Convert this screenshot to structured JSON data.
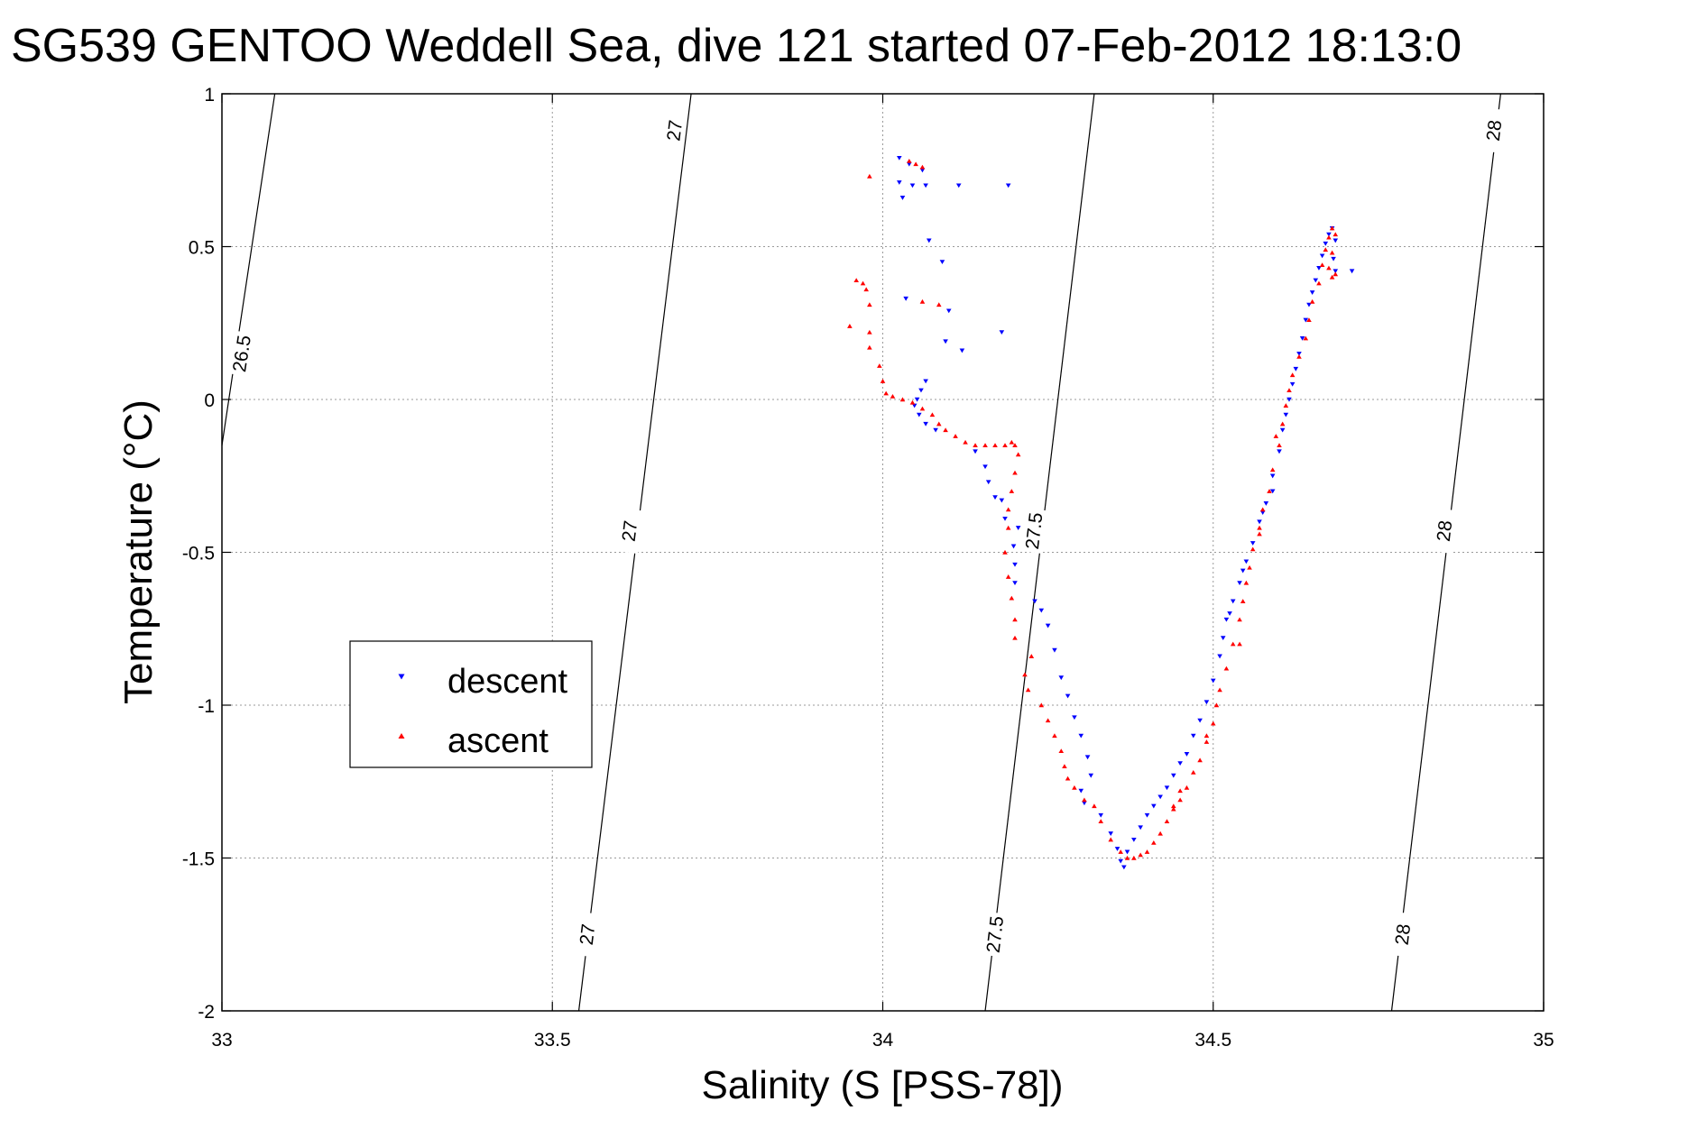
{
  "chart_data": {
    "type": "scatter",
    "title": "SG539 GENTOO Weddell Sea, dive 121 started 07-Feb-2012 18:13:0",
    "xlabel": "Salinity (S [PSS-78])",
    "ylabel": "Temperature (°C)",
    "xlim": [
      33,
      35
    ],
    "ylim": [
      -2,
      1
    ],
    "xticks": [
      "33",
      "33.5",
      "34",
      "34.5",
      "35"
    ],
    "yticks": [
      "1",
      "0.5",
      "0",
      "-0.5",
      "-1",
      "-1.5",
      "-2"
    ],
    "grid": true,
    "legend_position": "left-middle",
    "density_contours": [
      {
        "label": "26.5",
        "points": [
          [
            33.08,
            1.0
          ],
          [
            33.0,
            -0.15
          ]
        ],
        "label_positions": [
          [
            33.03,
            0.15
          ]
        ]
      },
      {
        "label": "27",
        "points": [
          [
            33.71,
            1.0
          ],
          [
            33.54,
            -2.0
          ]
        ],
        "label_positions": [
          [
            33.685,
            0.88
          ],
          [
            33.617,
            -0.43
          ],
          [
            33.553,
            -1.75
          ]
        ]
      },
      {
        "label": "27.5",
        "points": [
          [
            34.32,
            1.0
          ],
          [
            34.155,
            -2.0
          ]
        ],
        "label_positions": [
          [
            34.229,
            -0.43
          ],
          [
            34.17,
            -1.75
          ]
        ]
      },
      {
        "label": "28",
        "points": [
          [
            34.935,
            1.0
          ],
          [
            34.77,
            -2.0
          ]
        ],
        "label_positions": [
          [
            34.925,
            0.88
          ],
          [
            34.85,
            -0.43
          ],
          [
            34.787,
            -1.75
          ]
        ]
      }
    ],
    "series": [
      {
        "name": "descent",
        "color": "#0000ff",
        "marker": "triangle-down",
        "points": [
          [
            34.025,
            0.79
          ],
          [
            34.04,
            0.77
          ],
          [
            34.06,
            0.75
          ],
          [
            34.025,
            0.71
          ],
          [
            34.045,
            0.7
          ],
          [
            34.03,
            0.66
          ],
          [
            34.065,
            0.7
          ],
          [
            34.115,
            0.7
          ],
          [
            34.19,
            0.7
          ],
          [
            34.07,
            0.52
          ],
          [
            34.09,
            0.45
          ],
          [
            34.035,
            0.33
          ],
          [
            34.1,
            0.29
          ],
          [
            34.095,
            0.19
          ],
          [
            34.18,
            0.22
          ],
          [
            34.12,
            0.16
          ],
          [
            34.065,
            0.06
          ],
          [
            34.058,
            0.03
          ],
          [
            34.052,
            0.0
          ],
          [
            34.048,
            -0.02
          ],
          [
            34.055,
            -0.05
          ],
          [
            34.065,
            -0.08
          ],
          [
            34.08,
            -0.1
          ],
          [
            34.14,
            -0.17
          ],
          [
            34.155,
            -0.22
          ],
          [
            34.16,
            -0.27
          ],
          [
            34.17,
            -0.32
          ],
          [
            34.18,
            -0.33
          ],
          [
            34.185,
            -0.39
          ],
          [
            34.205,
            -0.42
          ],
          [
            34.198,
            -0.48
          ],
          [
            34.2,
            -0.54
          ],
          [
            34.2,
            -0.6
          ],
          [
            34.23,
            -0.66
          ],
          [
            34.24,
            -0.69
          ],
          [
            34.25,
            -0.74
          ],
          [
            34.26,
            -0.82
          ],
          [
            34.27,
            -0.91
          ],
          [
            34.28,
            -0.97
          ],
          [
            34.29,
            -1.04
          ],
          [
            34.3,
            -1.1
          ],
          [
            34.31,
            -1.17
          ],
          [
            34.315,
            -1.23
          ],
          [
            34.3,
            -1.28
          ],
          [
            34.305,
            -1.32
          ],
          [
            34.33,
            -1.36
          ],
          [
            34.345,
            -1.42
          ],
          [
            34.355,
            -1.47
          ],
          [
            34.36,
            -1.51
          ],
          [
            34.365,
            -1.53
          ],
          [
            34.37,
            -1.48
          ],
          [
            34.38,
            -1.44
          ],
          [
            34.39,
            -1.4
          ],
          [
            34.4,
            -1.36
          ],
          [
            34.41,
            -1.33
          ],
          [
            34.42,
            -1.3
          ],
          [
            34.43,
            -1.27
          ],
          [
            34.44,
            -1.23
          ],
          [
            34.45,
            -1.19
          ],
          [
            34.46,
            -1.16
          ],
          [
            34.47,
            -1.1
          ],
          [
            34.48,
            -1.05
          ],
          [
            34.49,
            -0.99
          ],
          [
            34.5,
            -0.92
          ],
          [
            34.51,
            -0.84
          ],
          [
            34.515,
            -0.78
          ],
          [
            34.52,
            -0.72
          ],
          [
            34.53,
            -0.66
          ],
          [
            34.54,
            -0.6
          ],
          [
            34.55,
            -0.53
          ],
          [
            34.56,
            -0.47
          ],
          [
            34.57,
            -0.4
          ],
          [
            34.58,
            -0.34
          ],
          [
            34.59,
            -0.25
          ],
          [
            34.6,
            -0.17
          ],
          [
            34.605,
            -0.1
          ],
          [
            34.61,
            -0.05
          ],
          [
            34.615,
            0.0
          ],
          [
            34.62,
            0.05
          ],
          [
            34.625,
            0.1
          ],
          [
            34.63,
            0.15
          ],
          [
            34.635,
            0.2
          ],
          [
            34.64,
            0.26
          ],
          [
            34.645,
            0.31
          ],
          [
            34.65,
            0.35
          ],
          [
            34.655,
            0.39
          ],
          [
            34.66,
            0.43
          ],
          [
            34.665,
            0.47
          ],
          [
            34.67,
            0.51
          ],
          [
            34.675,
            0.54
          ],
          [
            34.68,
            0.56
          ],
          [
            34.685,
            0.52
          ],
          [
            34.682,
            0.46
          ],
          [
            34.685,
            0.42
          ],
          [
            34.71,
            0.42
          ],
          [
            34.59,
            -0.3
          ],
          [
            34.545,
            -0.56
          ],
          [
            34.525,
            -0.7
          ],
          [
            34.575,
            -0.37
          ]
        ]
      },
      {
        "name": "ascent",
        "color": "#ff0000",
        "marker": "triangle-up",
        "points": [
          [
            34.04,
            0.78
          ],
          [
            34.05,
            0.77
          ],
          [
            34.06,
            0.76
          ],
          [
            33.98,
            0.73
          ],
          [
            33.96,
            0.39
          ],
          [
            33.97,
            0.38
          ],
          [
            33.975,
            0.36
          ],
          [
            33.98,
            0.31
          ],
          [
            33.95,
            0.24
          ],
          [
            33.98,
            0.22
          ],
          [
            33.98,
            0.17
          ],
          [
            34.06,
            0.32
          ],
          [
            34.085,
            0.31
          ],
          [
            33.995,
            0.11
          ],
          [
            34.0,
            0.06
          ],
          [
            34.005,
            0.02
          ],
          [
            34.015,
            0.01
          ],
          [
            34.03,
            0.0
          ],
          [
            34.045,
            -0.01
          ],
          [
            34.06,
            -0.03
          ],
          [
            34.075,
            -0.05
          ],
          [
            34.085,
            -0.08
          ],
          [
            34.095,
            -0.1
          ],
          [
            34.11,
            -0.12
          ],
          [
            34.125,
            -0.14
          ],
          [
            34.14,
            -0.15
          ],
          [
            34.155,
            -0.15
          ],
          [
            34.17,
            -0.15
          ],
          [
            34.185,
            -0.15
          ],
          [
            34.195,
            -0.14
          ],
          [
            34.2,
            -0.15
          ],
          [
            34.205,
            -0.18
          ],
          [
            34.2,
            -0.24
          ],
          [
            34.195,
            -0.3
          ],
          [
            34.19,
            -0.36
          ],
          [
            34.19,
            -0.42
          ],
          [
            34.185,
            -0.5
          ],
          [
            34.19,
            -0.58
          ],
          [
            34.195,
            -0.65
          ],
          [
            34.2,
            -0.72
          ],
          [
            34.2,
            -0.78
          ],
          [
            34.225,
            -0.84
          ],
          [
            34.215,
            -0.9
          ],
          [
            34.22,
            -0.95
          ],
          [
            34.24,
            -1.0
          ],
          [
            34.25,
            -1.05
          ],
          [
            34.26,
            -1.1
          ],
          [
            34.27,
            -1.15
          ],
          [
            34.275,
            -1.2
          ],
          [
            34.28,
            -1.24
          ],
          [
            34.29,
            -1.27
          ],
          [
            34.305,
            -1.31
          ],
          [
            34.32,
            -1.33
          ],
          [
            34.33,
            -1.38
          ],
          [
            34.345,
            -1.44
          ],
          [
            34.36,
            -1.48
          ],
          [
            34.37,
            -1.5
          ],
          [
            34.38,
            -1.5
          ],
          [
            34.39,
            -1.49
          ],
          [
            34.4,
            -1.48
          ],
          [
            34.41,
            -1.45
          ],
          [
            34.42,
            -1.42
          ],
          [
            34.43,
            -1.38
          ],
          [
            34.44,
            -1.34
          ],
          [
            34.45,
            -1.31
          ],
          [
            34.46,
            -1.27
          ],
          [
            34.47,
            -1.22
          ],
          [
            34.48,
            -1.18
          ],
          [
            34.49,
            -1.12
          ],
          [
            34.5,
            -1.06
          ],
          [
            34.505,
            -1.0
          ],
          [
            34.51,
            -0.95
          ],
          [
            34.52,
            -0.88
          ],
          [
            34.53,
            -0.8
          ],
          [
            34.54,
            -0.72
          ],
          [
            34.545,
            -0.66
          ],
          [
            34.55,
            -0.6
          ],
          [
            34.555,
            -0.55
          ],
          [
            34.56,
            -0.49
          ],
          [
            34.57,
            -0.42
          ],
          [
            34.575,
            -0.36
          ],
          [
            34.585,
            -0.3
          ],
          [
            34.59,
            -0.23
          ],
          [
            34.6,
            -0.15
          ],
          [
            34.605,
            -0.08
          ],
          [
            34.61,
            -0.02
          ],
          [
            34.615,
            0.03
          ],
          [
            34.62,
            0.08
          ],
          [
            34.63,
            0.14
          ],
          [
            34.64,
            0.2
          ],
          [
            34.645,
            0.26
          ],
          [
            34.65,
            0.32
          ],
          [
            34.66,
            0.38
          ],
          [
            34.665,
            0.44
          ],
          [
            34.67,
            0.49
          ],
          [
            34.675,
            0.53
          ],
          [
            34.68,
            0.56
          ],
          [
            34.685,
            0.54
          ],
          [
            34.68,
            0.48
          ],
          [
            34.675,
            0.43
          ],
          [
            34.68,
            0.4
          ],
          [
            34.685,
            0.41
          ],
          [
            34.45,
            -1.28
          ],
          [
            34.44,
            -1.33
          ],
          [
            34.595,
            -0.12
          ],
          [
            34.57,
            -0.44
          ],
          [
            34.54,
            -0.8
          ],
          [
            34.49,
            -1.1
          ]
        ]
      }
    ]
  }
}
